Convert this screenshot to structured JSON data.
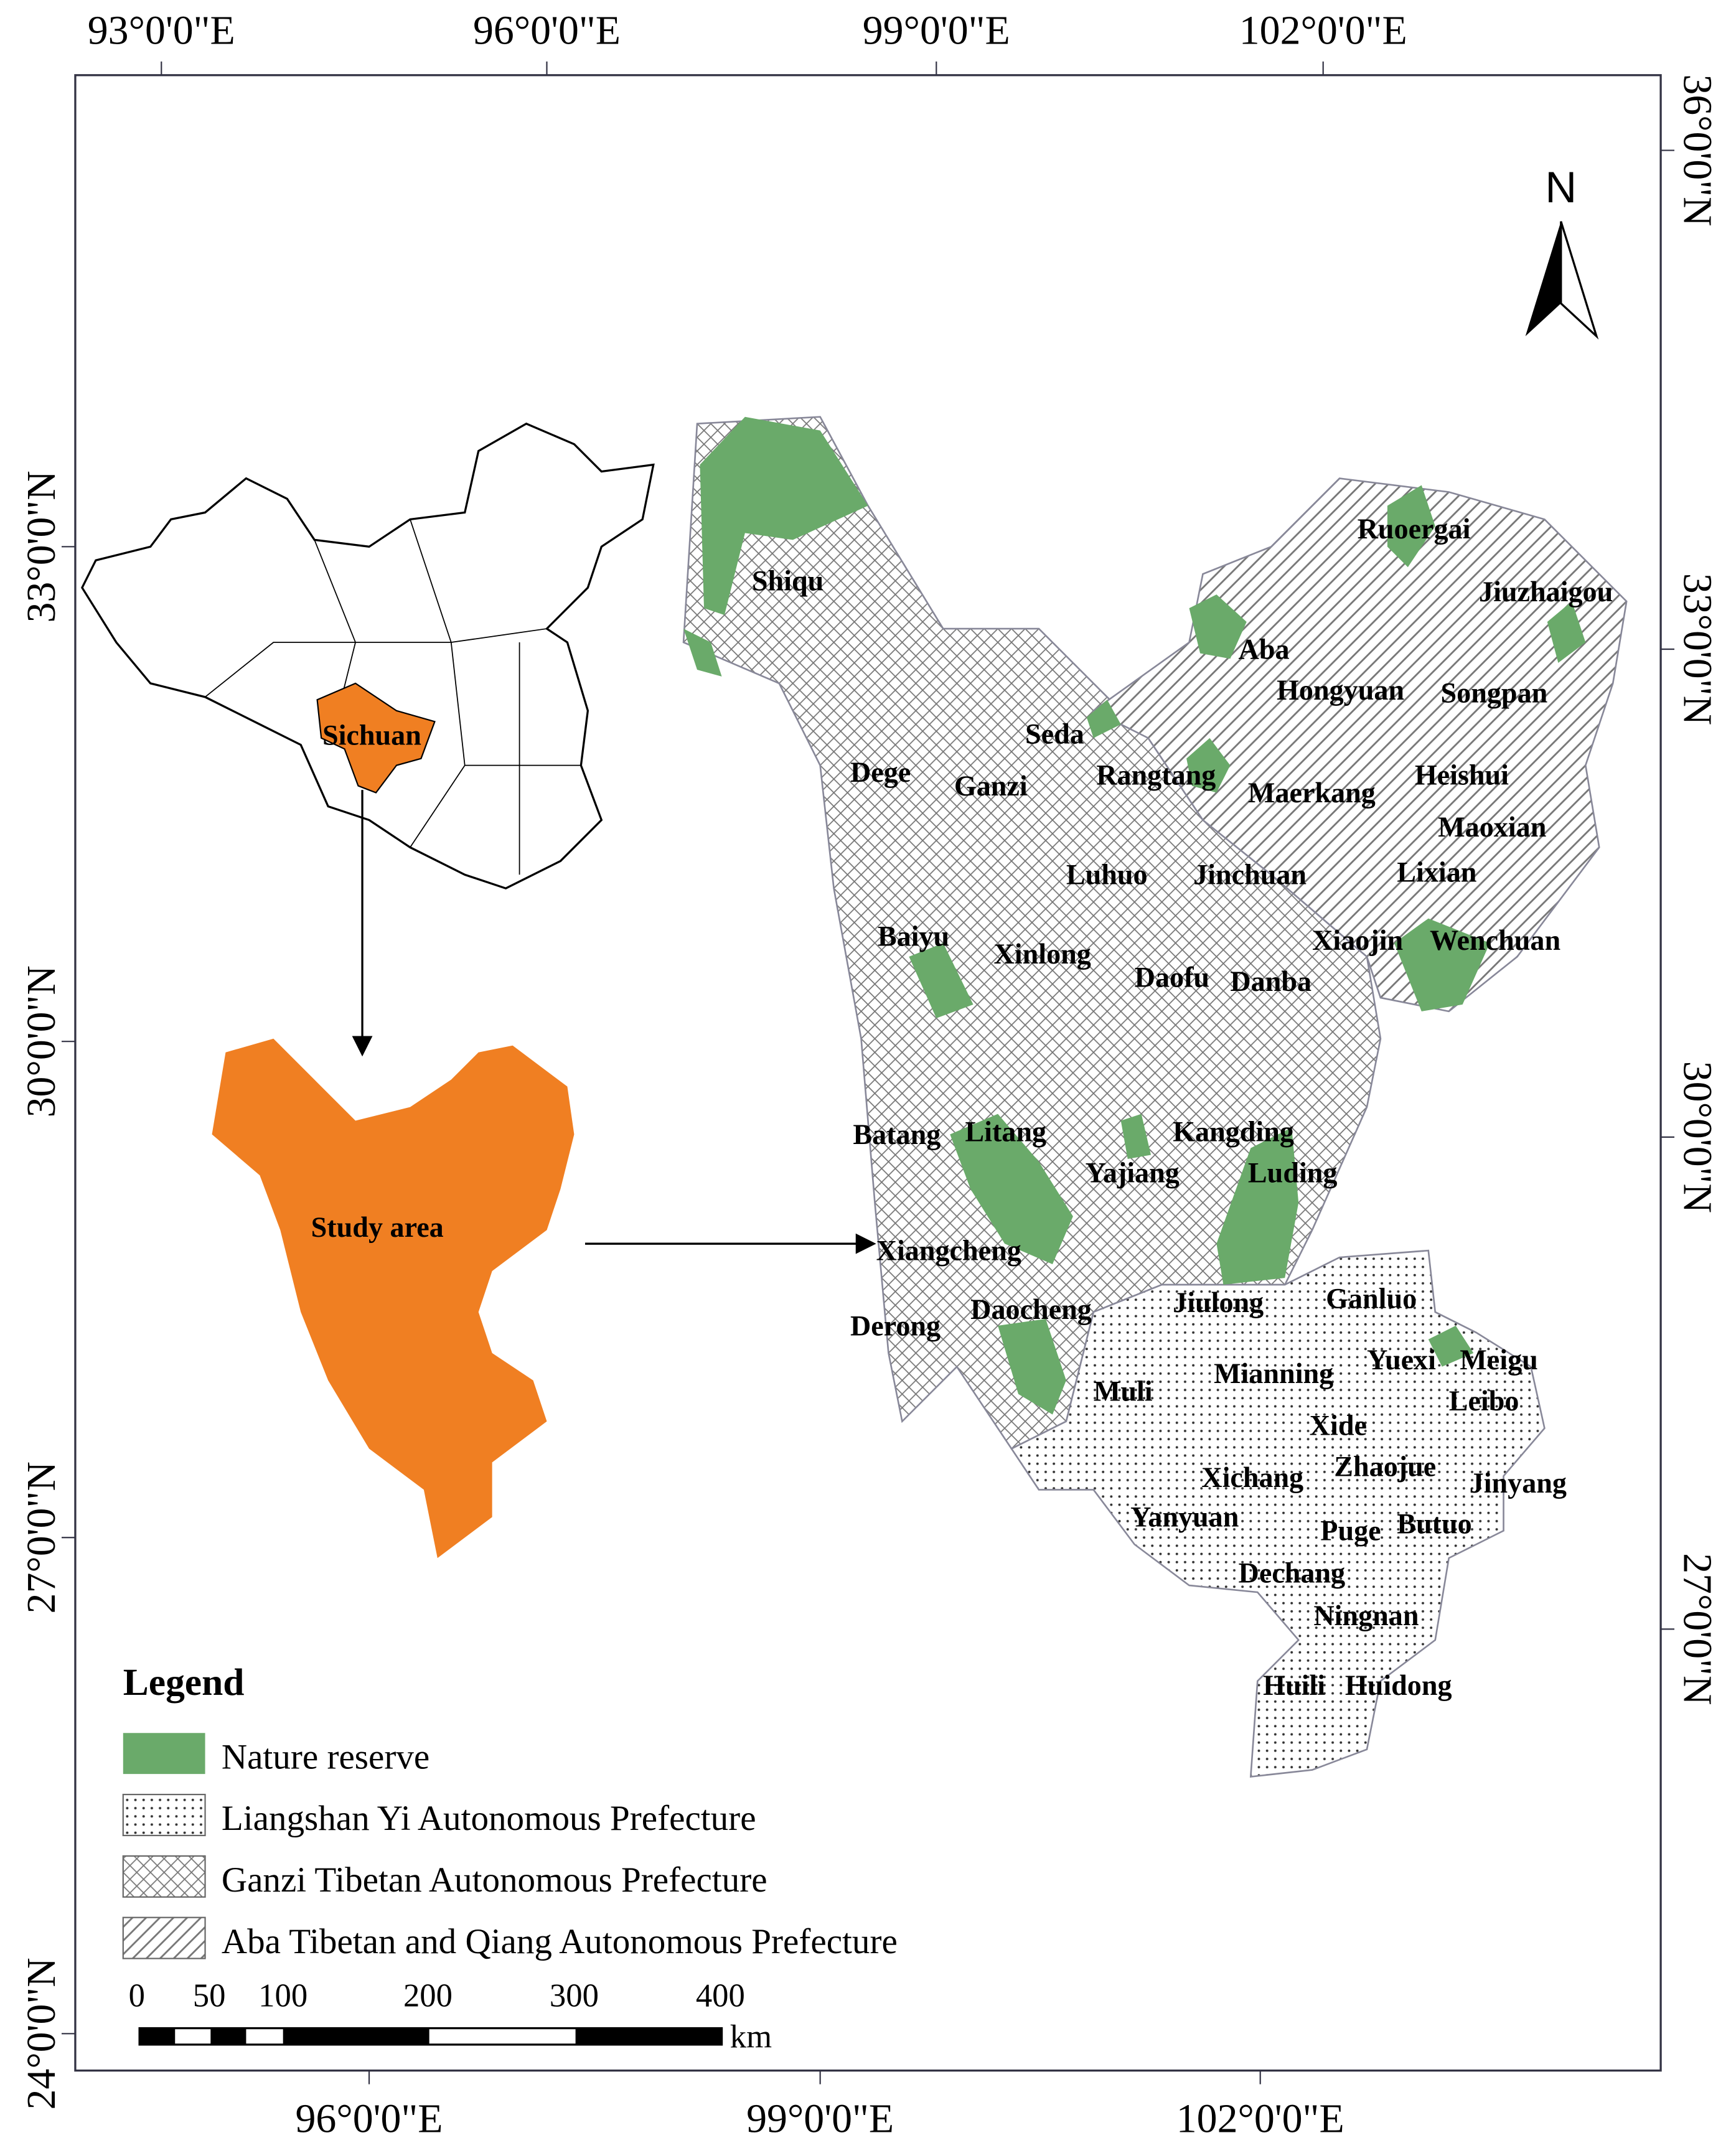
{
  "top_axis": [
    "93°0'0\"E",
    "96°0'0\"E",
    "99°0'0\"E",
    "102°0'0\"E"
  ],
  "bottom_axis": [
    "96°0'0\"E",
    "99°0'0\"E",
    "102°0'0\"E"
  ],
  "left_axis": [
    "33°0'0\"N",
    "30°0'0\"N",
    "27°0'0\"N",
    "24°0'0\"N"
  ],
  "right_axis": [
    "36°0'0\"N",
    "33°0'0\"N",
    "30°0'0\"N",
    "27°0'0\"N"
  ],
  "north": "N",
  "inset": {
    "province": "Sichuan",
    "study_area": "Study area"
  },
  "counties": [
    "Shiqu",
    "Ruoergai",
    "Jiuzhaigou",
    "Aba",
    "Hongyuan",
    "Songpan",
    "Seda",
    "Dege",
    "Ganzi",
    "Rangtang",
    "Maerkang",
    "Heishui",
    "Maoxian",
    "Luhuo",
    "Jinchuan",
    "Lixian",
    "Baiyu",
    "Xinlong",
    "Xiaojin",
    "Wenchuan",
    "Daofu",
    "Danba",
    "Batang",
    "Litang",
    "Kangding",
    "Yajiang",
    "Luding",
    "Xiangcheng",
    "Jiulong",
    "Ganluo",
    "Derong",
    "Daocheng",
    "Yuexi",
    "Meigu",
    "Mianning",
    "Muli",
    "Leibo",
    "Xide",
    "Zhaojue",
    "Jinyang",
    "Xichang",
    "Yanyuan",
    "Puge",
    "Butuo",
    "Dechang",
    "Ningnan",
    "Huili",
    "Huidong"
  ],
  "legend": {
    "title": "Legend",
    "items": [
      "Nature reserve",
      "Liangshan Yi Autonomous Prefecture",
      "Ganzi Tibetan Autonomous Prefecture",
      "Aba Tibetan and Qiang Autonomous Prefecture"
    ]
  },
  "scale_bar": {
    "ticks": [
      "0",
      "50",
      "100",
      "200",
      "300",
      "400"
    ],
    "unit": "km"
  }
}
